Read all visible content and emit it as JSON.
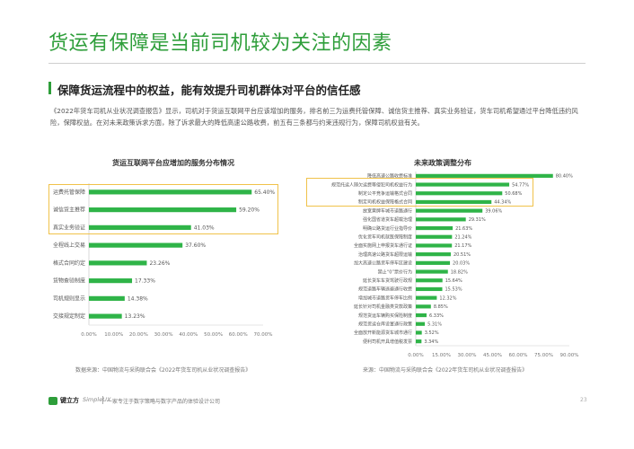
{
  "header": {
    "title": "货运有保障是当前司机较为关注的因素",
    "subtitle": "保障货运流程中的权益，能有效提升司机群体对平台的信任感",
    "paragraph": "《2022年货车司机从业状况调查报告》显示，司机对于货运互联网平台应该增加的服务，排名前三为运费托管保障、诚信货主推荐、真实业务验证，货车司机希望通过平台降低违约风险，保障权益。在对未来政策诉求方面，除了诉求最大的降低高速公路收费，前五有三条都与约束违规行为，保障司机权益有关。"
  },
  "colors": {
    "accent": "#2e9e3a",
    "bar": "#2fb448",
    "highlight": "#f0c24a"
  },
  "chart_data": [
    {
      "type": "bar",
      "orientation": "horizontal",
      "title": "货运互联网平台应增加的服务分布情况",
      "categories": [
        "运费托管保障",
        "诚信货主推荐",
        "真实业务验证",
        "全程线上交易",
        "格式合同约定",
        "货物查验制度",
        "司机规则显示",
        "交接规定制定"
      ],
      "values": [
        65.4,
        59.2,
        41.03,
        37.6,
        23.26,
        17.33,
        14.38,
        13.23
      ],
      "value_labels": [
        "65.40%",
        "59.20%",
        "41.03%",
        "37.60%",
        "23.26%",
        "17.33%",
        "14.38%",
        "13.23%"
      ],
      "xlim": [
        0,
        70
      ],
      "xticks": [
        "0.00%",
        "10.00%",
        "20.00%",
        "30.00%",
        "40.00%",
        "50.00%",
        "60.00%",
        "70.00%"
      ],
      "highlighted": [
        "运费托管保障",
        "诚信货主推荐",
        "真实业务验证"
      ],
      "source": "数据来源：中国物流与采购联合会《2022年货车司机从业状况调查报告》"
    },
    {
      "type": "bar",
      "orientation": "horizontal",
      "title": "未来政策调整分布",
      "categories": [
        "降低高速公路收费标准",
        "规范托运人随欠运费等侵犯司机权益行为",
        "制定公平竞争运输格式合同",
        "制定司机权益保障格式合同",
        "放宽黄牌车城市道路通行",
        "强化国省道货车超载治理",
        "明确公路货运行业指导价",
        "优化货车司机就医保障制度",
        "全面实施网上申报货车通行证",
        "治理高速公路货车超限运输",
        "加大高速公路货车停车区建设",
        "禁止“0”票价行为",
        "延长货车车货驾驶行政规",
        "规范道路车辆逃避通行收费",
        "增加城市道路货车停车比例",
        "延长针对司机金融类贷款政策",
        "规范货运车辆购买保险制度",
        "规范货运仓库设置通行政策",
        "全面放开新能源货车城市通行",
        "便利司机开具增值税发票"
      ],
      "values": [
        80.4,
        54.77,
        50.68,
        44.34,
        39.06,
        29.31,
        21.63,
        21.24,
        21.17,
        20.51,
        20.03,
        18.82,
        15.64,
        15.53,
        12.32,
        8.85,
        6.33,
        5.31,
        3.52,
        3.34
      ],
      "value_labels": [
        "80.40%",
        "54.77%",
        "50.68%",
        "44.34%",
        "39.06%",
        "29.31%",
        "21.63%",
        "21.24%",
        "21.17%",
        "20.51%",
        "20.03%",
        "18.82%",
        "15.64%",
        "15.53%",
        "12.32%",
        "8.85%",
        "6.33%",
        "5.31%",
        "3.52%",
        "3.34%"
      ],
      "xlim": [
        0,
        90
      ],
      "xticks": [
        "0.00%",
        "15.00%",
        "30.00%",
        "45.00%",
        "60.00%",
        "75.00%",
        "90.00%"
      ],
      "highlighted": [
        "规范托运人随欠运费等侵犯司机权益行为",
        "制定公平竞争运输格式合同",
        "制定司机权益保障格式合同"
      ],
      "source": "来源：中国物流与采购联合会《2022年货车司机从业状况调查报告》"
    }
  ],
  "footer": {
    "brand": "键立方",
    "brand_en": "SimpleUX",
    "tagline": "一家专注于数字策略与数字产品的体验设计公司",
    "page": "23"
  }
}
